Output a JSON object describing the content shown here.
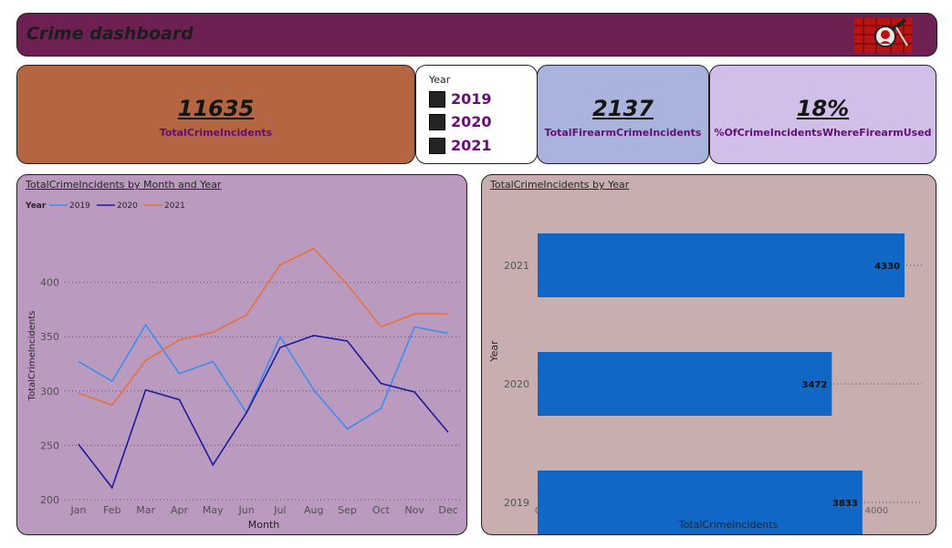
{
  "header": {
    "title": "Crime dashboard",
    "logo_icon": "crime-scene-investigator-icon"
  },
  "kpis": {
    "total": {
      "value": "11635",
      "label": "TotalCrimeIncidents"
    },
    "firearm": {
      "value": "2137",
      "label": "TotalFirearmCrimeIncidents"
    },
    "pct": {
      "value": "18%",
      "label": "%OfCrimeIncidentsWhereFirearmUsed"
    }
  },
  "slicer": {
    "title": "Year",
    "items": [
      "2019",
      "2020",
      "2021"
    ]
  },
  "colors": {
    "header": "#6d2051",
    "kpi_total": "#b36641",
    "kpi_firearm": "#aab3dd",
    "kpi_pct": "#d1bfea",
    "line_panel": "#bb9abf",
    "bar_panel": "#c8aeae",
    "label_purple": "#640f72",
    "series_2019": "#3c8df0",
    "series_2020": "#1d1b9e",
    "series_2021": "#e8703f",
    "bar": "#1167c5"
  },
  "chart_data": [
    {
      "type": "line",
      "title": "TotalCrimeIncidents by Month and Year",
      "xlabel": "Month",
      "ylabel": "TotalCrimeIncidents",
      "legend_title": "Year",
      "legend_position": "top-left",
      "grid": true,
      "ylim": [
        200,
        450
      ],
      "yticks": [
        200,
        250,
        300,
        350,
        400
      ],
      "categories": [
        "Jan",
        "Feb",
        "Mar",
        "Apr",
        "May",
        "Jun",
        "Jul",
        "Aug",
        "Sep",
        "Oct",
        "Nov",
        "Dec"
      ],
      "series": [
        {
          "name": "2019",
          "color": "#3c8df0",
          "values": [
            327,
            309,
            361,
            316,
            327,
            280,
            350,
            301,
            265,
            284,
            359,
            353
          ]
        },
        {
          "name": "2020",
          "color": "#1d1b9e",
          "values": [
            251,
            211,
            301,
            292,
            232,
            280,
            340,
            351,
            346,
            307,
            299,
            262
          ]
        },
        {
          "name": "2021",
          "color": "#e8703f",
          "values": [
            298,
            287,
            328,
            347,
            354,
            370,
            416,
            431,
            398,
            359,
            371,
            371
          ]
        }
      ]
    },
    {
      "type": "bar",
      "orientation": "horizontal",
      "title": "TotalCrimeIncidents by Year",
      "xlabel": "TotalCrimeIncidents",
      "ylabel": "Year",
      "xlim": [
        0,
        4400
      ],
      "xticks": [
        0,
        1000,
        2000,
        3000,
        4000
      ],
      "categories": [
        "2021",
        "2020",
        "2019"
      ],
      "values": [
        4330,
        3472,
        3833
      ],
      "color": "#1167c5"
    }
  ]
}
